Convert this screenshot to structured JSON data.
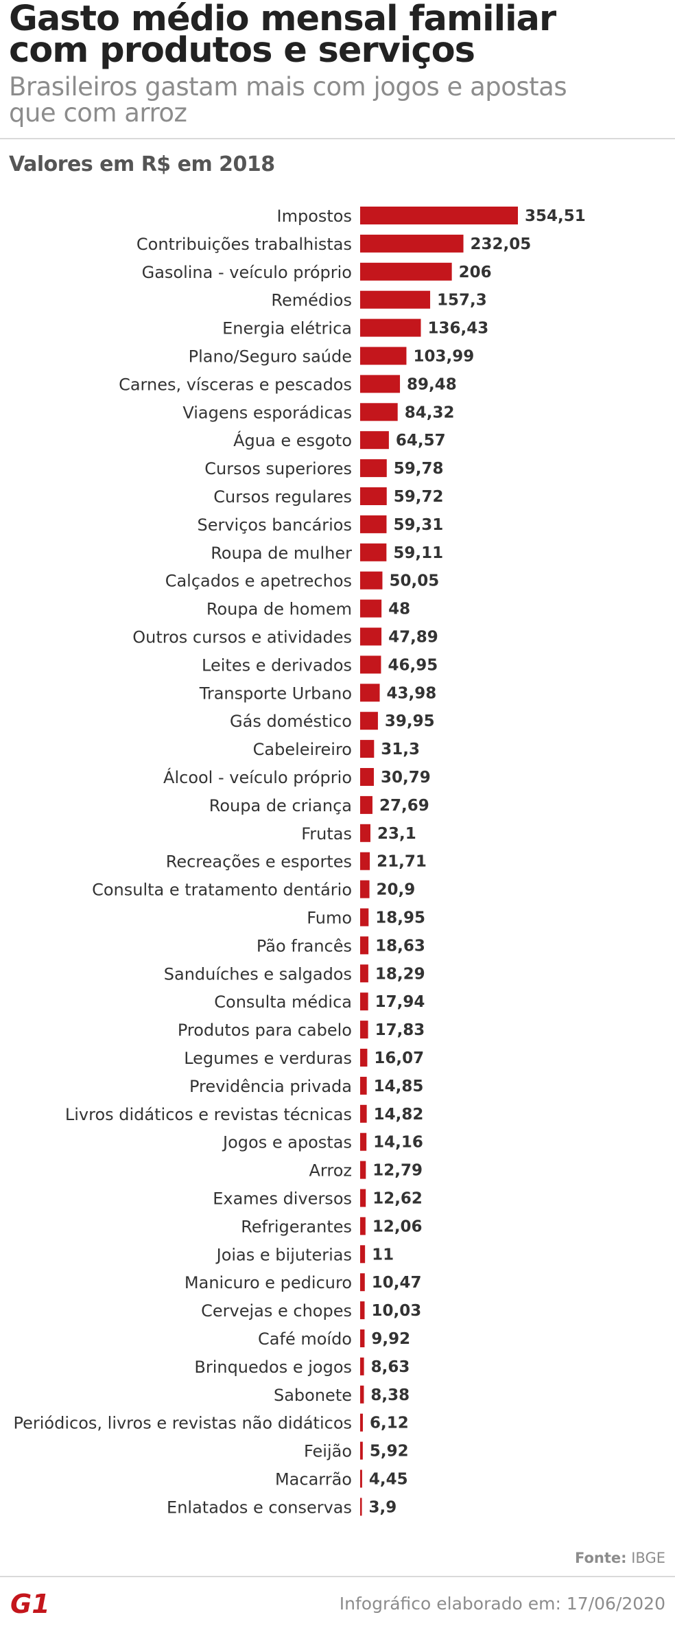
{
  "header": {
    "title_line1": "Gasto médio mensal familiar",
    "title_line2": "com produtos e serviços",
    "subtitle_line1": "Brasileiros gastam mais com jogos e apostas",
    "subtitle_line2": "que com arroz",
    "units": "Valores em R$ em 2018"
  },
  "footer": {
    "source_label": "Fonte:",
    "source_value": "IBGE",
    "created": "Infográfico elaborado em: 17/06/2020",
    "logo_text": "G1"
  },
  "colors": {
    "bar": "#c4161c",
    "logo": "#c4161c"
  },
  "chart_data": {
    "type": "bar",
    "orientation": "horizontal",
    "categories": [
      "Impostos",
      "Contribuições trabalhistas",
      "Gasolina - veículo próprio",
      "Remédios",
      "Energia elétrica",
      "Plano/Seguro saúde",
      "Carnes, vísceras e pescados",
      "Viagens esporádicas",
      "Água e esgoto",
      "Cursos superiores",
      "Cursos regulares",
      "Serviços bancários",
      "Roupa de mulher",
      "Calçados e apetrechos",
      "Roupa de homem",
      "Outros cursos e atividades",
      "Leites e derivados",
      "Transporte Urbano",
      "Gás doméstico",
      "Cabeleireiro",
      "Álcool - veículo próprio",
      "Roupa de criança",
      "Frutas",
      "Recreações e esportes",
      "Consulta e tratamento dentário",
      "Fumo",
      "Pão francês",
      "Sanduíches e salgados",
      "Consulta médica",
      "Produtos para cabelo",
      "Legumes e verduras",
      "Previdência privada",
      "Livros didáticos e revistas técnicas",
      "Jogos e apostas",
      "Arroz",
      "Exames diversos",
      "Refrigerantes",
      "Joias e bijuterias",
      "Manicuro e pedicuro",
      "Cervejas e chopes",
      "Café moído",
      "Brinquedos e jogos",
      "Sabonete",
      "Periódicos, livros e revistas não didáticos",
      "Feijão",
      "Macarrão",
      "Enlatados e conservas"
    ],
    "values": [
      354.51,
      232.05,
      206,
      157.3,
      136.43,
      103.99,
      89.48,
      84.32,
      64.57,
      59.78,
      59.72,
      59.31,
      59.11,
      50.05,
      48,
      47.89,
      46.95,
      43.98,
      39.95,
      31.3,
      30.79,
      27.69,
      23.1,
      21.71,
      20.9,
      18.95,
      18.63,
      18.29,
      17.94,
      17.83,
      16.07,
      14.85,
      14.82,
      14.16,
      12.79,
      12.62,
      12.06,
      11,
      10.47,
      10.03,
      9.92,
      8.63,
      8.38,
      6.12,
      5.92,
      4.45,
      3.9
    ],
    "value_labels": [
      "354,51",
      "232,05",
      "206",
      "157,3",
      "136,43",
      "103,99",
      "89,48",
      "84,32",
      "64,57",
      "59,78",
      "59,72",
      "59,31",
      "59,11",
      "50,05",
      "48",
      "47,89",
      "46,95",
      "43,98",
      "39,95",
      "31,3",
      "30,79",
      "27,69",
      "23,1",
      "21,71",
      "20,9",
      "18,95",
      "18,63",
      "18,29",
      "17,94",
      "17,83",
      "16,07",
      "14,85",
      "14,82",
      "14,16",
      "12,79",
      "12,62",
      "12,06",
      "11",
      "10,47",
      "10,03",
      "9,92",
      "8,63",
      "8,38",
      "6,12",
      "5,92",
      "4,45",
      "3,9"
    ],
    "title": "Gasto médio mensal familiar com produtos e serviços",
    "subtitle": "Brasileiros gastam mais com jogos e apostas que com arroz",
    "xlabel": "",
    "ylabel": "",
    "grid": false,
    "legend": "none"
  }
}
